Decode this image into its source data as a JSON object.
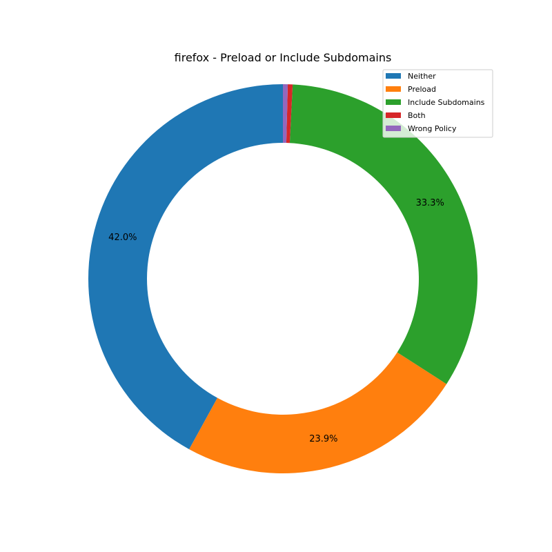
{
  "chart_data": {
    "type": "pie",
    "donut": true,
    "title": "firefox - Preload or Include Subdomains",
    "start_angle_deg": 90,
    "direction": "counterclockwise",
    "legend_position": "top-right",
    "slices": [
      {
        "label": "Neither",
        "value": 42.0,
        "color": "#1f77b4",
        "pct_label": "42.0%"
      },
      {
        "label": "Preload",
        "value": 23.9,
        "color": "#ff7f0e",
        "pct_label": "23.9%"
      },
      {
        "label": "Include Subdomains",
        "value": 33.3,
        "color": "#2ca02c",
        "pct_label": "33.3%"
      },
      {
        "label": "Both",
        "value": 0.4,
        "color": "#d62728",
        "pct_label": ""
      },
      {
        "label": "Wrong Policy",
        "value": 0.4,
        "color": "#9467bd",
        "pct_label": ""
      }
    ]
  }
}
